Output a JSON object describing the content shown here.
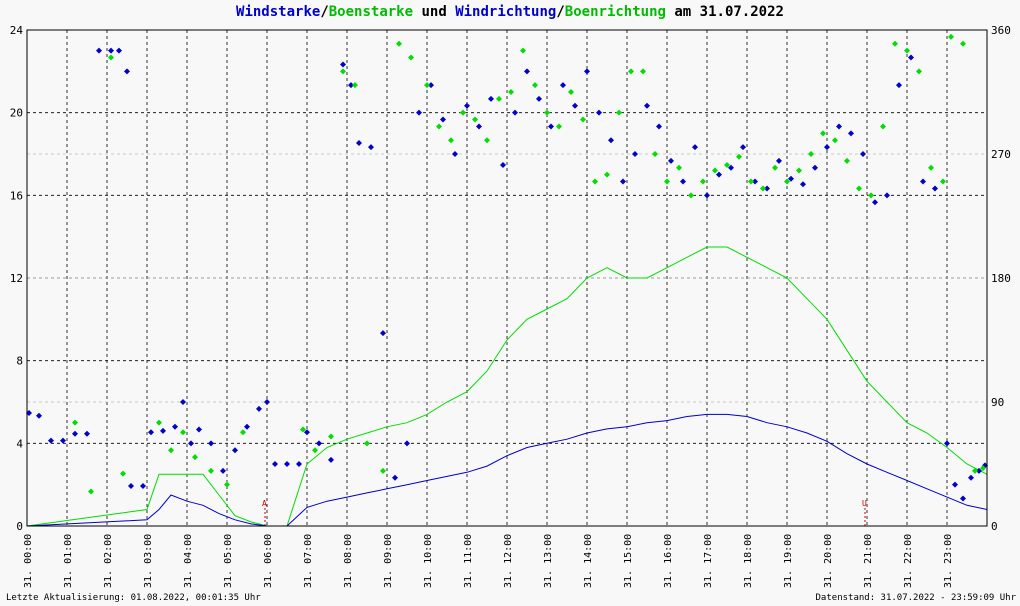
{
  "title": {
    "part1": "Windstarke",
    "sep1": "/",
    "part2": "Boenstarke",
    "mid": " und ",
    "part3": "Windrichtung",
    "sep2": "/",
    "part4": "Boenrichtung",
    "end": " am 31.07.2022"
  },
  "footer": {
    "left": "Letzte Aktualisierung: 01.08.2022, 00:01:35 Uhr",
    "right": "Datenstand: 31.07.2022 - 23:59:09 Uhr"
  },
  "colors": {
    "wind": "#0000cc",
    "gust": "#00dd00",
    "marker": "#cc0000",
    "grid": "#000000",
    "background": "#f8f8f8"
  },
  "chart_data": {
    "type": "scatter",
    "left_axis": {
      "range": [
        0,
        24
      ],
      "ticks": [
        "0",
        "4",
        "8",
        "12",
        "16",
        "20",
        "24"
      ]
    },
    "right_axis": {
      "range": [
        0,
        360
      ],
      "ticks": [
        "0",
        "90",
        "180",
        "270",
        "360"
      ]
    },
    "x_ticks": [
      "31. 00:00",
      "31. 01:00",
      "31. 02:00",
      "31. 03:00",
      "31. 04:00",
      "31. 05:00",
      "31. 06:00",
      "31. 07:00",
      "31. 08:00",
      "31. 09:00",
      "31. 10:00",
      "31. 11:00",
      "31. 12:00",
      "31. 13:00",
      "31. 14:00",
      "31. 15:00",
      "31. 16:00",
      "31. 17:00",
      "31. 18:00",
      "31. 19:00",
      "31. 20:00",
      "31. 21:00",
      "31. 22:00",
      "31. 23:00"
    ],
    "markers": [
      {
        "label": "A",
        "hour": 5.95
      },
      {
        "label": "U",
        "hour": 20.95
      }
    ],
    "series": [
      {
        "name": "Windstarke",
        "kind": "line",
        "points": [
          [
            0,
            0
          ],
          [
            3.0,
            0.3
          ],
          [
            3.3,
            0.8
          ],
          [
            3.6,
            1.5
          ],
          [
            4.0,
            1.2
          ],
          [
            4.4,
            1.0
          ],
          [
            4.8,
            0.6
          ],
          [
            5.2,
            0.3
          ],
          [
            5.6,
            0.1
          ],
          [
            6.0,
            0
          ],
          [
            6.5,
            0
          ],
          [
            7.0,
            0.9
          ],
          [
            7.5,
            1.2
          ],
          [
            8.0,
            1.4
          ],
          [
            8.5,
            1.6
          ],
          [
            9.0,
            1.8
          ],
          [
            9.5,
            2.0
          ],
          [
            10.0,
            2.2
          ],
          [
            10.5,
            2.4
          ],
          [
            11.0,
            2.6
          ],
          [
            11.5,
            2.9
          ],
          [
            12.0,
            3.4
          ],
          [
            12.5,
            3.8
          ],
          [
            13.0,
            4.0
          ],
          [
            13.5,
            4.2
          ],
          [
            14.0,
            4.5
          ],
          [
            14.5,
            4.7
          ],
          [
            15.0,
            4.8
          ],
          [
            15.5,
            5.0
          ],
          [
            16.0,
            5.1
          ],
          [
            16.5,
            5.3
          ],
          [
            17.0,
            5.4
          ],
          [
            17.5,
            5.4
          ],
          [
            18.0,
            5.3
          ],
          [
            18.5,
            5.0
          ],
          [
            19.0,
            4.8
          ],
          [
            19.5,
            4.5
          ],
          [
            20.0,
            4.1
          ],
          [
            20.5,
            3.5
          ],
          [
            21.0,
            3.0
          ],
          [
            21.5,
            2.6
          ],
          [
            22.0,
            2.2
          ],
          [
            22.5,
            1.8
          ],
          [
            23.0,
            1.4
          ],
          [
            23.5,
            1.0
          ],
          [
            24.0,
            0.8
          ]
        ]
      },
      {
        "name": "Boenstarke",
        "kind": "line",
        "points": [
          [
            0,
            0
          ],
          [
            3.0,
            0.8
          ],
          [
            3.3,
            2.5
          ],
          [
            3.6,
            2.5
          ],
          [
            4.0,
            2.5
          ],
          [
            4.4,
            2.5
          ],
          [
            4.8,
            1.5
          ],
          [
            5.2,
            0.5
          ],
          [
            5.6,
            0.2
          ],
          [
            6.0,
            0
          ],
          [
            6.5,
            0
          ],
          [
            7.0,
            3.0
          ],
          [
            7.5,
            3.8
          ],
          [
            8.0,
            4.2
          ],
          [
            8.5,
            4.5
          ],
          [
            9.0,
            4.8
          ],
          [
            9.5,
            5.0
          ],
          [
            10.0,
            5.4
          ],
          [
            10.5,
            6.0
          ],
          [
            11.0,
            6.5
          ],
          [
            11.5,
            7.5
          ],
          [
            12.0,
            9.0
          ],
          [
            12.5,
            10.0
          ],
          [
            13.0,
            10.5
          ],
          [
            13.5,
            11.0
          ],
          [
            14.0,
            12.0
          ],
          [
            14.5,
            12.5
          ],
          [
            15.0,
            12.0
          ],
          [
            15.5,
            12.0
          ],
          [
            16.0,
            12.5
          ],
          [
            16.5,
            13.0
          ],
          [
            17.0,
            13.5
          ],
          [
            17.5,
            13.5
          ],
          [
            18.0,
            13.0
          ],
          [
            18.5,
            12.5
          ],
          [
            19.0,
            12.0
          ],
          [
            19.5,
            11.0
          ],
          [
            20.0,
            10.0
          ],
          [
            20.5,
            8.5
          ],
          [
            21.0,
            7.0
          ],
          [
            21.5,
            6.0
          ],
          [
            22.0,
            5.0
          ],
          [
            22.5,
            4.5
          ],
          [
            23.0,
            3.8
          ],
          [
            23.5,
            3.0
          ],
          [
            24.0,
            2.5
          ]
        ]
      },
      {
        "name": "Windrichtung",
        "kind": "scatter",
        "points": [
          [
            0.05,
            82
          ],
          [
            0.3,
            80
          ],
          [
            0.6,
            62
          ],
          [
            0.9,
            62
          ],
          [
            1.2,
            67
          ],
          [
            1.5,
            67
          ],
          [
            1.8,
            345
          ],
          [
            2.1,
            345
          ],
          [
            2.3,
            345
          ],
          [
            2.5,
            330
          ],
          [
            2.6,
            29
          ],
          [
            2.9,
            29
          ],
          [
            3.1,
            68
          ],
          [
            3.4,
            69
          ],
          [
            3.7,
            72
          ],
          [
            3.9,
            90
          ],
          [
            4.1,
            60
          ],
          [
            4.3,
            70
          ],
          [
            4.6,
            60
          ],
          [
            4.9,
            40
          ],
          [
            5.2,
            55
          ],
          [
            5.5,
            72
          ],
          [
            5.8,
            85
          ],
          [
            6.0,
            90
          ],
          [
            6.2,
            45
          ],
          [
            6.5,
            45
          ],
          [
            6.8,
            45
          ],
          [
            7.0,
            68
          ],
          [
            7.3,
            60
          ],
          [
            7.6,
            48
          ],
          [
            7.9,
            335
          ],
          [
            8.1,
            320
          ],
          [
            8.3,
            278
          ],
          [
            8.6,
            275
          ],
          [
            8.9,
            140
          ],
          [
            9.2,
            35
          ],
          [
            9.5,
            60
          ],
          [
            9.8,
            300
          ],
          [
            10.1,
            320
          ],
          [
            10.4,
            295
          ],
          [
            10.7,
            270
          ],
          [
            11.0,
            305
          ],
          [
            11.3,
            290
          ],
          [
            11.6,
            310
          ],
          [
            11.9,
            262
          ],
          [
            12.2,
            300
          ],
          [
            12.5,
            330
          ],
          [
            12.8,
            310
          ],
          [
            13.1,
            290
          ],
          [
            13.4,
            320
          ],
          [
            13.7,
            305
          ],
          [
            14.0,
            330
          ],
          [
            14.3,
            300
          ],
          [
            14.6,
            280
          ],
          [
            14.9,
            250
          ],
          [
            15.2,
            270
          ],
          [
            15.5,
            305
          ],
          [
            15.8,
            290
          ],
          [
            16.1,
            265
          ],
          [
            16.4,
            250
          ],
          [
            16.7,
            275
          ],
          [
            17.0,
            240
          ],
          [
            17.3,
            255
          ],
          [
            17.6,
            260
          ],
          [
            17.9,
            275
          ],
          [
            18.2,
            250
          ],
          [
            18.5,
            245
          ],
          [
            18.8,
            265
          ],
          [
            19.1,
            252
          ],
          [
            19.4,
            248
          ],
          [
            19.7,
            260
          ],
          [
            20.0,
            275
          ],
          [
            20.3,
            290
          ],
          [
            20.6,
            285
          ],
          [
            20.9,
            270
          ],
          [
            21.2,
            235
          ],
          [
            21.5,
            240
          ],
          [
            21.8,
            320
          ],
          [
            22.1,
            340
          ],
          [
            22.4,
            250
          ],
          [
            22.7,
            245
          ],
          [
            23.0,
            60
          ],
          [
            23.2,
            30
          ],
          [
            23.4,
            20
          ],
          [
            23.6,
            35
          ],
          [
            23.8,
            40
          ],
          [
            23.95,
            44
          ]
        ]
      },
      {
        "name": "Boenrichtung",
        "kind": "scatter",
        "points": [
          [
            1.2,
            75
          ],
          [
            1.6,
            25
          ],
          [
            2.1,
            340
          ],
          [
            2.4,
            38
          ],
          [
            3.3,
            75
          ],
          [
            3.6,
            55
          ],
          [
            3.9,
            68
          ],
          [
            4.2,
            50
          ],
          [
            4.6,
            40
          ],
          [
            5.0,
            30
          ],
          [
            5.4,
            68
          ],
          [
            6.9,
            70
          ],
          [
            7.2,
            55
          ],
          [
            7.6,
            65
          ],
          [
            7.9,
            330
          ],
          [
            8.2,
            320
          ],
          [
            8.5,
            60
          ],
          [
            8.9,
            40
          ],
          [
            9.3,
            350
          ],
          [
            9.6,
            340
          ],
          [
            10.0,
            320
          ],
          [
            10.3,
            290
          ],
          [
            10.6,
            280
          ],
          [
            10.9,
            300
          ],
          [
            11.2,
            295
          ],
          [
            11.5,
            280
          ],
          [
            11.8,
            310
          ],
          [
            12.1,
            315
          ],
          [
            12.4,
            345
          ],
          [
            12.7,
            320
          ],
          [
            13.0,
            300
          ],
          [
            13.3,
            290
          ],
          [
            13.6,
            315
          ],
          [
            13.9,
            295
          ],
          [
            14.2,
            250
          ],
          [
            14.5,
            255
          ],
          [
            14.8,
            300
          ],
          [
            15.1,
            330
          ],
          [
            15.4,
            330
          ],
          [
            15.7,
            270
          ],
          [
            16.0,
            250
          ],
          [
            16.3,
            260
          ],
          [
            16.6,
            240
          ],
          [
            16.9,
            250
          ],
          [
            17.2,
            258
          ],
          [
            17.5,
            262
          ],
          [
            17.8,
            268
          ],
          [
            18.1,
            250
          ],
          [
            18.4,
            245
          ],
          [
            18.7,
            260
          ],
          [
            19.0,
            250
          ],
          [
            19.3,
            258
          ],
          [
            19.6,
            270
          ],
          [
            19.9,
            285
          ],
          [
            20.2,
            280
          ],
          [
            20.5,
            265
          ],
          [
            20.8,
            245
          ],
          [
            21.1,
            240
          ],
          [
            21.4,
            290
          ],
          [
            21.7,
            350
          ],
          [
            22.0,
            345
          ],
          [
            22.3,
            330
          ],
          [
            22.6,
            260
          ],
          [
            22.9,
            250
          ],
          [
            23.1,
            355
          ],
          [
            23.4,
            350
          ],
          [
            23.7,
            40
          ],
          [
            23.9,
            42
          ]
        ]
      }
    ]
  }
}
